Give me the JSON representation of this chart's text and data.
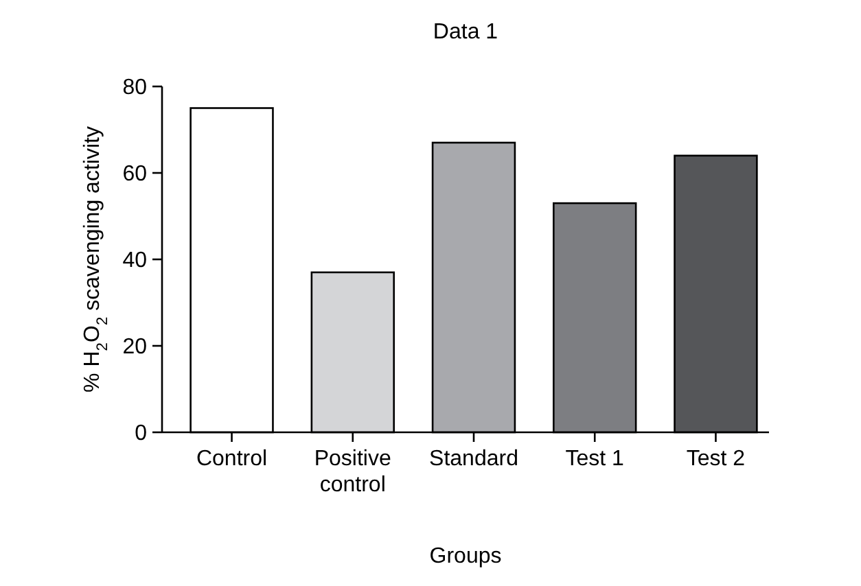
{
  "chart_data": {
    "type": "bar",
    "title": "Data 1",
    "xlabel": "Groups",
    "ylabel": "% H$_{2}$O$_{2}$ scavenging activity",
    "categories": [
      "Control",
      "Positive control",
      "Standard",
      "Test 1",
      "Test 2"
    ],
    "values": [
      75,
      37,
      67,
      53,
      64
    ],
    "colors": [
      "#ffffff",
      "#d4d5d7",
      "#a8a9ad",
      "#7d7e82",
      "#555659"
    ],
    "ylim": [
      0,
      80
    ],
    "yticks": [
      0,
      20,
      40,
      60,
      80
    ],
    "grid": false
  }
}
